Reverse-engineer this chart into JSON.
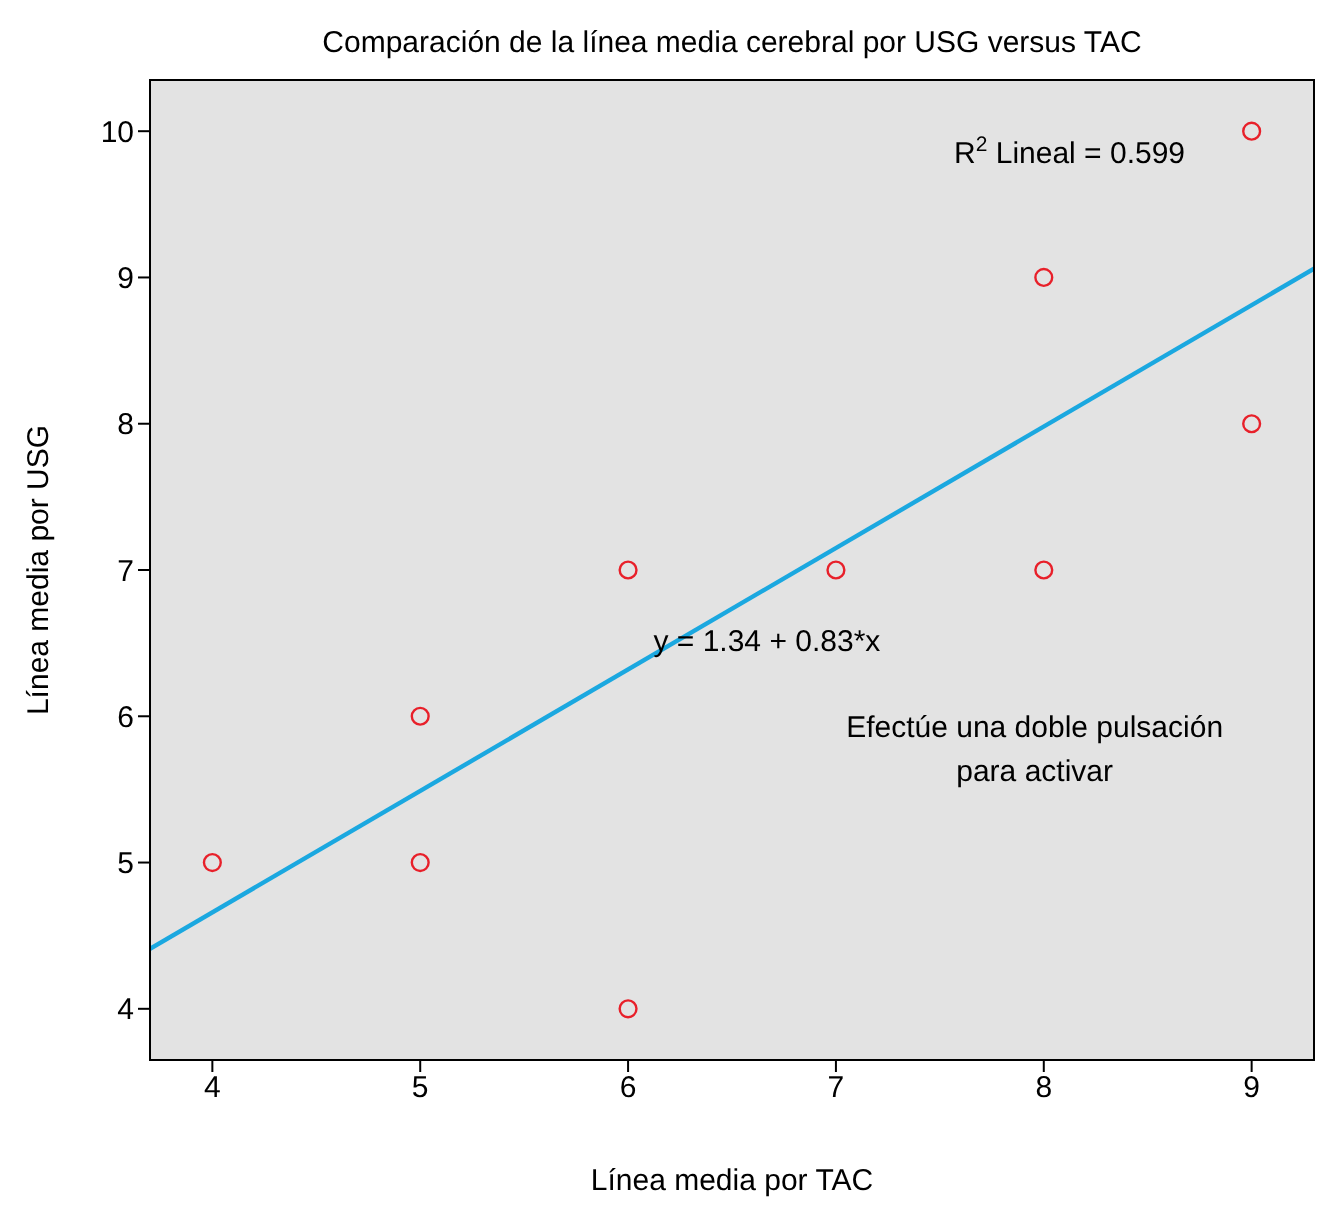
{
  "chart_data": {
    "type": "scatter",
    "title": "Comparación de la línea media cerebral por USG versus TAC",
    "xlabel": "Línea media por TAC",
    "ylabel": "Línea media por USG",
    "annotations": [
      "R$^{2}$ Lineal = 0.599",
      "y = 1.34 + 0.83*x",
      "Efectúe una doble pulsación\npara activar"
    ],
    "series": [
      {
        "color": "#e8202a",
        "marker": "circle",
        "x": [
          4,
          5,
          5,
          6,
          6,
          7,
          8,
          8,
          9,
          9
        ],
        "values": [
          5,
          6,
          5,
          7,
          4,
          7,
          9,
          7,
          10,
          8
        ]
      },
      {
        "type": "line",
        "color": "#1ba8e0",
        "marker": "none",
        "x": [
          3.7,
          9.3
        ],
        "values": [
          4.41,
          9.06
        ]
      }
    ],
    "xlim": [
      3.7,
      9.3
    ],
    "ylim": [
      3.65,
      10.35
    ],
    "xticks": [
      4,
      5,
      6,
      7,
      8,
      9
    ],
    "yticks": [
      4,
      5,
      6,
      7,
      8,
      9,
      10
    ],
    "grid": false
  }
}
